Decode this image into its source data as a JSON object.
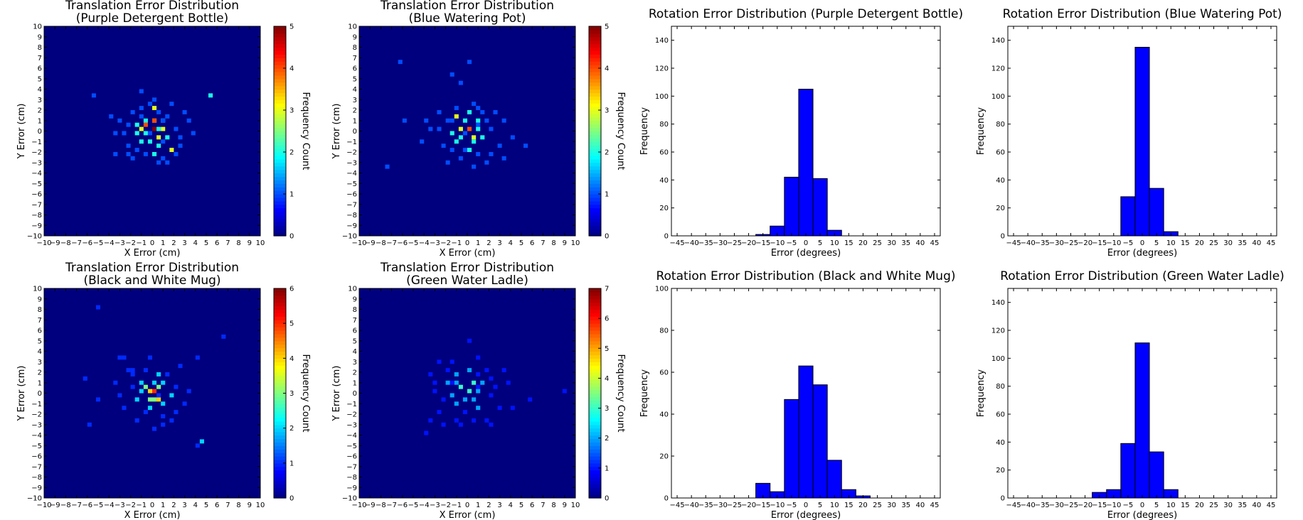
{
  "chart_data": [
    {
      "type": "heatmap",
      "title": [
        "Translation Error Distribution",
        "(Purple Detergent Bottle)"
      ],
      "xlabel": "X Error (cm)",
      "ylabel": "Y Error (cm)",
      "colorbar_label": "Frequency Count",
      "xlim": [
        -10,
        10
      ],
      "ylim": [
        -10,
        10
      ],
      "colorbar_range": [
        0,
        5
      ],
      "colormap": "jet",
      "points": [
        [
          0,
          0,
          5
        ],
        [
          -0.5,
          0.5,
          4
        ],
        [
          0.5,
          -0.5,
          3
        ],
        [
          0,
          1,
          3
        ],
        [
          -1,
          0,
          3
        ],
        [
          0.3,
          0.8,
          4
        ],
        [
          -0.2,
          -1,
          2
        ],
        [
          1,
          0.3,
          3
        ],
        [
          0.6,
          -1.6,
          2
        ],
        [
          -1,
          -1,
          2
        ],
        [
          -0.5,
          1,
          2
        ],
        [
          0.2,
          2.2,
          3
        ],
        [
          1.8,
          -1.8,
          3
        ],
        [
          -1.3,
          0.6,
          2
        ],
        [
          0.8,
          1,
          2
        ],
        [
          -0.7,
          -0.4,
          2
        ],
        [
          1.3,
          -0.6,
          2
        ],
        [
          -1.6,
          -0.2,
          2
        ],
        [
          0.1,
          -2.4,
          2
        ],
        [
          0.4,
          0.2,
          2
        ],
        [
          -1.1,
          1.3,
          1
        ],
        [
          2,
          -2.2,
          1
        ],
        [
          -2.2,
          0.5,
          1
        ],
        [
          1.5,
          1.5,
          1
        ],
        [
          -0.3,
          2.5,
          1
        ],
        [
          -0.9,
          2,
          1
        ],
        [
          2.6,
          -0.6,
          1
        ],
        [
          -2.6,
          -0.4,
          1
        ],
        [
          0.9,
          -1,
          1
        ],
        [
          -1.4,
          -1.8,
          1
        ],
        [
          1.2,
          0.8,
          1
        ],
        [
          -0.1,
          -0.3,
          1
        ],
        [
          2.3,
          0.1,
          1
        ],
        [
          -1.9,
          1.6,
          1
        ],
        [
          0.7,
          1.8,
          1
        ],
        [
          -2.9,
          0.9,
          1
        ],
        [
          3.2,
          1,
          1
        ],
        [
          -3.4,
          -0.1,
          1
        ],
        [
          -3.5,
          -2.2,
          1
        ],
        [
          1,
          -2.5,
          1
        ],
        [
          -0.5,
          -2.2,
          1
        ],
        [
          2.8,
          -1.4,
          1
        ],
        [
          -2.4,
          -1.3,
          1
        ],
        [
          0.5,
          -3,
          1
        ],
        [
          -0.9,
          3.6,
          1
        ],
        [
          -3.8,
          1.3,
          1
        ],
        [
          3.6,
          -0.4,
          1
        ],
        [
          -5.6,
          3.5,
          1
        ],
        [
          5.6,
          3.3,
          2
        ],
        [
          1.7,
          2.6,
          1
        ],
        [
          -1.7,
          -2.6,
          1
        ],
        [
          2.9,
          1.8,
          1
        ],
        [
          0,
          3,
          1
        ],
        [
          -2.1,
          -2.4,
          1
        ],
        [
          1.3,
          -3.1,
          1
        ]
      ]
    },
    {
      "type": "heatmap",
      "title": [
        "Translation Error Distribution",
        "(Blue Watering Pot)"
      ],
      "xlabel": "X Error (cm)",
      "ylabel": "Y Error (cm)",
      "colorbar_label": "Frequency Count",
      "xlim": [
        -10,
        10
      ],
      "ylim": [
        -10,
        10
      ],
      "colorbar_range": [
        0,
        5
      ],
      "colormap": "jet",
      "points": [
        [
          0,
          0,
          4
        ],
        [
          -0.5,
          0.3,
          3
        ],
        [
          0.4,
          -0.6,
          3
        ],
        [
          -0.2,
          1,
          2
        ],
        [
          -1,
          1.5,
          3
        ],
        [
          1,
          0.3,
          2
        ],
        [
          0.6,
          -1.2,
          2
        ],
        [
          -1,
          -1,
          2
        ],
        [
          0.3,
          1.8,
          2
        ],
        [
          -1.5,
          -0.3,
          2
        ],
        [
          1.5,
          -0.8,
          2
        ],
        [
          -0.7,
          -0.5,
          2
        ],
        [
          0.8,
          1,
          2
        ],
        [
          1.8,
          1.2,
          1
        ],
        [
          -1.8,
          0.8,
          1
        ],
        [
          0.1,
          -2,
          2
        ],
        [
          -0.4,
          -1.8,
          1
        ],
        [
          2.1,
          0,
          1
        ],
        [
          -2.2,
          -1.3,
          1
        ],
        [
          1.2,
          -2.1,
          1
        ],
        [
          -1.2,
          2.4,
          1
        ],
        [
          2.6,
          1.8,
          1
        ],
        [
          -2.6,
          0.1,
          1
        ],
        [
          0.4,
          2.8,
          1
        ],
        [
          -0.8,
          -2.8,
          1
        ],
        [
          2.9,
          -1.5,
          1
        ],
        [
          -3.4,
          0.1,
          1
        ],
        [
          3.3,
          1.2,
          1
        ],
        [
          1.8,
          -3,
          1
        ],
        [
          -2,
          -3,
          1
        ],
        [
          -1.6,
          1.2,
          1
        ],
        [
          0.9,
          0.6,
          1
        ],
        [
          -0.1,
          -0.4,
          1
        ],
        [
          1.3,
          1.6,
          1
        ],
        [
          -1.3,
          -1.9,
          1
        ],
        [
          2.2,
          -2.2,
          1
        ],
        [
          -2.7,
          1.9,
          1
        ],
        [
          0.6,
          -3.4,
          1
        ],
        [
          4.2,
          -0.8,
          1
        ],
        [
          -4.1,
          -1.2,
          1
        ],
        [
          -6.3,
          6.5,
          1
        ],
        [
          -6,
          0.9,
          1
        ],
        [
          -7.6,
          -3.4,
          1
        ],
        [
          0.1,
          6.7,
          1
        ],
        [
          -1.6,
          5.4,
          1
        ],
        [
          -0.5,
          4.5,
          1
        ],
        [
          5.4,
          -1.5,
          1
        ],
        [
          3.5,
          -2.6,
          1
        ],
        [
          -3.8,
          1,
          1
        ],
        [
          1.1,
          2.4,
          1
        ]
      ]
    },
    {
      "type": "bar",
      "title": "Rotation Error Distribution (Purple Detergent Bottle)",
      "xlabel": "Error (degrees)",
      "ylabel": "Frequency",
      "xlim": [
        -47,
        47
      ],
      "ylim": [
        0,
        150
      ],
      "bin_edges": [
        -17.5,
        -12.5,
        -7.5,
        -2.5,
        2.5,
        7.5,
        12.5
      ],
      "values": [
        1,
        7,
        42,
        105,
        41,
        4
      ],
      "color": "#0000ff"
    },
    {
      "type": "bar",
      "title": "Rotation Error Distribution (Blue Watering Pot)",
      "xlabel": "Error (degrees)",
      "ylabel": "Frequency",
      "xlim": [
        -47,
        47
      ],
      "ylim": [
        0,
        150
      ],
      "bin_edges": [
        -7.5,
        -2.5,
        2.5,
        7.5,
        12.5
      ],
      "values": [
        28,
        135,
        34,
        3
      ],
      "color": "#0000ff"
    },
    {
      "type": "heatmap",
      "title": [
        "Translation Error Distribution",
        "(Black and White Mug)"
      ],
      "xlabel": "X Error (cm)",
      "ylabel": "Y Error (cm)",
      "colorbar_label": "Frequency Count",
      "xlim": [
        -10,
        10
      ],
      "ylim": [
        -10,
        10
      ],
      "colorbar_range": [
        0,
        6
      ],
      "colormap": "jet",
      "points": [
        [
          0,
          0,
          5
        ],
        [
          -0.3,
          0.3,
          4
        ],
        [
          0.5,
          -0.5,
          4
        ],
        [
          0.2,
          -0.8,
          3
        ],
        [
          -0.8,
          0.5,
          3
        ],
        [
          0.6,
          0.4,
          3
        ],
        [
          -0.4,
          -0.6,
          3
        ],
        [
          1,
          -1.2,
          2
        ],
        [
          -1.2,
          0.2,
          2
        ],
        [
          0.1,
          1,
          2
        ],
        [
          -1,
          1.2,
          2
        ],
        [
          0.9,
          0.9,
          2
        ],
        [
          -1.6,
          -0.6,
          2
        ],
        [
          1.6,
          -0.4,
          2
        ],
        [
          -0.2,
          -1.6,
          2
        ],
        [
          0.5,
          1.6,
          2
        ],
        [
          -2,
          0.6,
          1
        ],
        [
          2,
          0.4,
          1
        ],
        [
          0.8,
          -2.2,
          1
        ],
        [
          -0.8,
          -2,
          1
        ],
        [
          -2.4,
          2.2,
          1
        ],
        [
          2.6,
          2.5,
          1
        ],
        [
          -3,
          -0.3,
          1
        ],
        [
          2.9,
          -0.9,
          1
        ],
        [
          -1.5,
          -2.6,
          1
        ],
        [
          1.6,
          -2.5,
          1
        ],
        [
          0.2,
          -3.5,
          1
        ],
        [
          -0.2,
          3.4,
          1
        ],
        [
          -2.6,
          -1.5,
          1
        ],
        [
          1.4,
          1.8,
          1
        ],
        [
          -1.8,
          1.6,
          1
        ],
        [
          2.3,
          -1.9,
          1
        ],
        [
          -0.6,
          2.3,
          1
        ],
        [
          3.4,
          0.3,
          1
        ],
        [
          -3.3,
          1.2,
          1
        ],
        [
          1.2,
          -3.1,
          1
        ],
        [
          -5.1,
          8.2,
          1
        ],
        [
          6.6,
          5.5,
          1
        ],
        [
          4.4,
          -4.6,
          2
        ],
        [
          4.1,
          -5.2,
          1
        ],
        [
          -6.2,
          1.3,
          1
        ],
        [
          -6,
          -3,
          1
        ],
        [
          -5,
          -0.5,
          1
        ],
        [
          4.1,
          3.2,
          1
        ],
        [
          -2.6,
          3.4,
          1
        ],
        [
          -3.2,
          3.5,
          1
        ],
        [
          -1.9,
          2.3,
          1
        ],
        [
          0.4,
          -0.2,
          1
        ]
      ]
    },
    {
      "type": "heatmap",
      "title": [
        "Translation Error Distribution",
        "(Green Water Ladle)"
      ],
      "xlabel": "X Error (cm)",
      "ylabel": "Y Error (cm)",
      "colorbar_label": "Frequency Count",
      "xlim": [
        -10,
        10
      ],
      "ylim": [
        -10,
        10
      ],
      "colorbar_range": [
        0,
        7
      ],
      "colormap": "jet",
      "points": [
        [
          0,
          0,
          3
        ],
        [
          -0.5,
          0.5,
          3
        ],
        [
          0.5,
          1,
          3
        ],
        [
          -1,
          1,
          2
        ],
        [
          0.9,
          0.2,
          2
        ],
        [
          -0.3,
          -0.5,
          2
        ],
        [
          0.6,
          -0.8,
          2
        ],
        [
          -1.4,
          -0.3,
          2
        ],
        [
          1.5,
          0.8,
          2
        ],
        [
          -0.9,
          1.8,
          2
        ],
        [
          0.2,
          2.1,
          2
        ],
        [
          -1.2,
          -1.2,
          2
        ],
        [
          1.1,
          -1.4,
          2
        ],
        [
          -2,
          0.9,
          2
        ],
        [
          2.2,
          1.4,
          1
        ],
        [
          -0.1,
          -1.9,
          1
        ],
        [
          -2.4,
          -0.6,
          1
        ],
        [
          2.4,
          -0.4,
          1
        ],
        [
          1.9,
          2.3,
          1
        ],
        [
          -1.8,
          2.4,
          1
        ],
        [
          0.4,
          -2.6,
          1
        ],
        [
          -0.9,
          -2.6,
          1
        ],
        [
          2.8,
          0.5,
          1
        ],
        [
          -3,
          0.3,
          1
        ],
        [
          3.1,
          -1.3,
          1
        ],
        [
          -2.8,
          -1.8,
          1
        ],
        [
          1.6,
          -2.5,
          1
        ],
        [
          -1.3,
          3,
          1
        ],
        [
          0.9,
          3.3,
          1
        ],
        [
          3.4,
          2.1,
          1
        ],
        [
          -3.5,
          1.9,
          1
        ],
        [
          2.3,
          -2.9,
          1
        ],
        [
          -2.1,
          -3,
          1
        ],
        [
          -3.4,
          -2.6,
          1
        ],
        [
          -4,
          -4,
          1
        ],
        [
          4.2,
          -1.5,
          1
        ],
        [
          5.8,
          -0.5,
          1
        ],
        [
          9,
          0,
          1
        ],
        [
          -3.2,
          1.1,
          1
        ],
        [
          0.2,
          4.9,
          1
        ],
        [
          -1.6,
          1,
          1
        ],
        [
          1.2,
          1.6,
          1
        ],
        [
          -0.6,
          -3.2,
          1
        ],
        [
          3.7,
          1.1,
          1
        ],
        [
          -2.6,
          2.9,
          1
        ],
        [
          0.8,
          0.6,
          1
        ]
      ]
    },
    {
      "type": "bar",
      "title": "Rotation Error Distribution (Black and White Mug)",
      "xlabel": "Error (degrees)",
      "ylabel": "Frequency",
      "xlim": [
        -47,
        47
      ],
      "ylim": [
        0,
        100
      ],
      "bin_edges": [
        -17.5,
        -12.5,
        -7.5,
        -2.5,
        2.5,
        7.5,
        12.5,
        17.5,
        22.5
      ],
      "values": [
        7,
        3,
        47,
        63,
        54,
        18,
        4,
        1
      ],
      "color": "#0000ff"
    },
    {
      "type": "bar",
      "title": "Rotation Error Distribution (Green Water Ladle)",
      "xlabel": "Error (degrees)",
      "ylabel": "Frequency",
      "xlim": [
        -47,
        47
      ],
      "ylim": [
        0,
        150
      ],
      "bin_edges": [
        -17.5,
        -12.5,
        -7.5,
        -2.5,
        2.5,
        7.5,
        12.5
      ],
      "values": [
        4,
        6,
        39,
        111,
        33,
        6
      ],
      "color": "#0000ff"
    }
  ]
}
